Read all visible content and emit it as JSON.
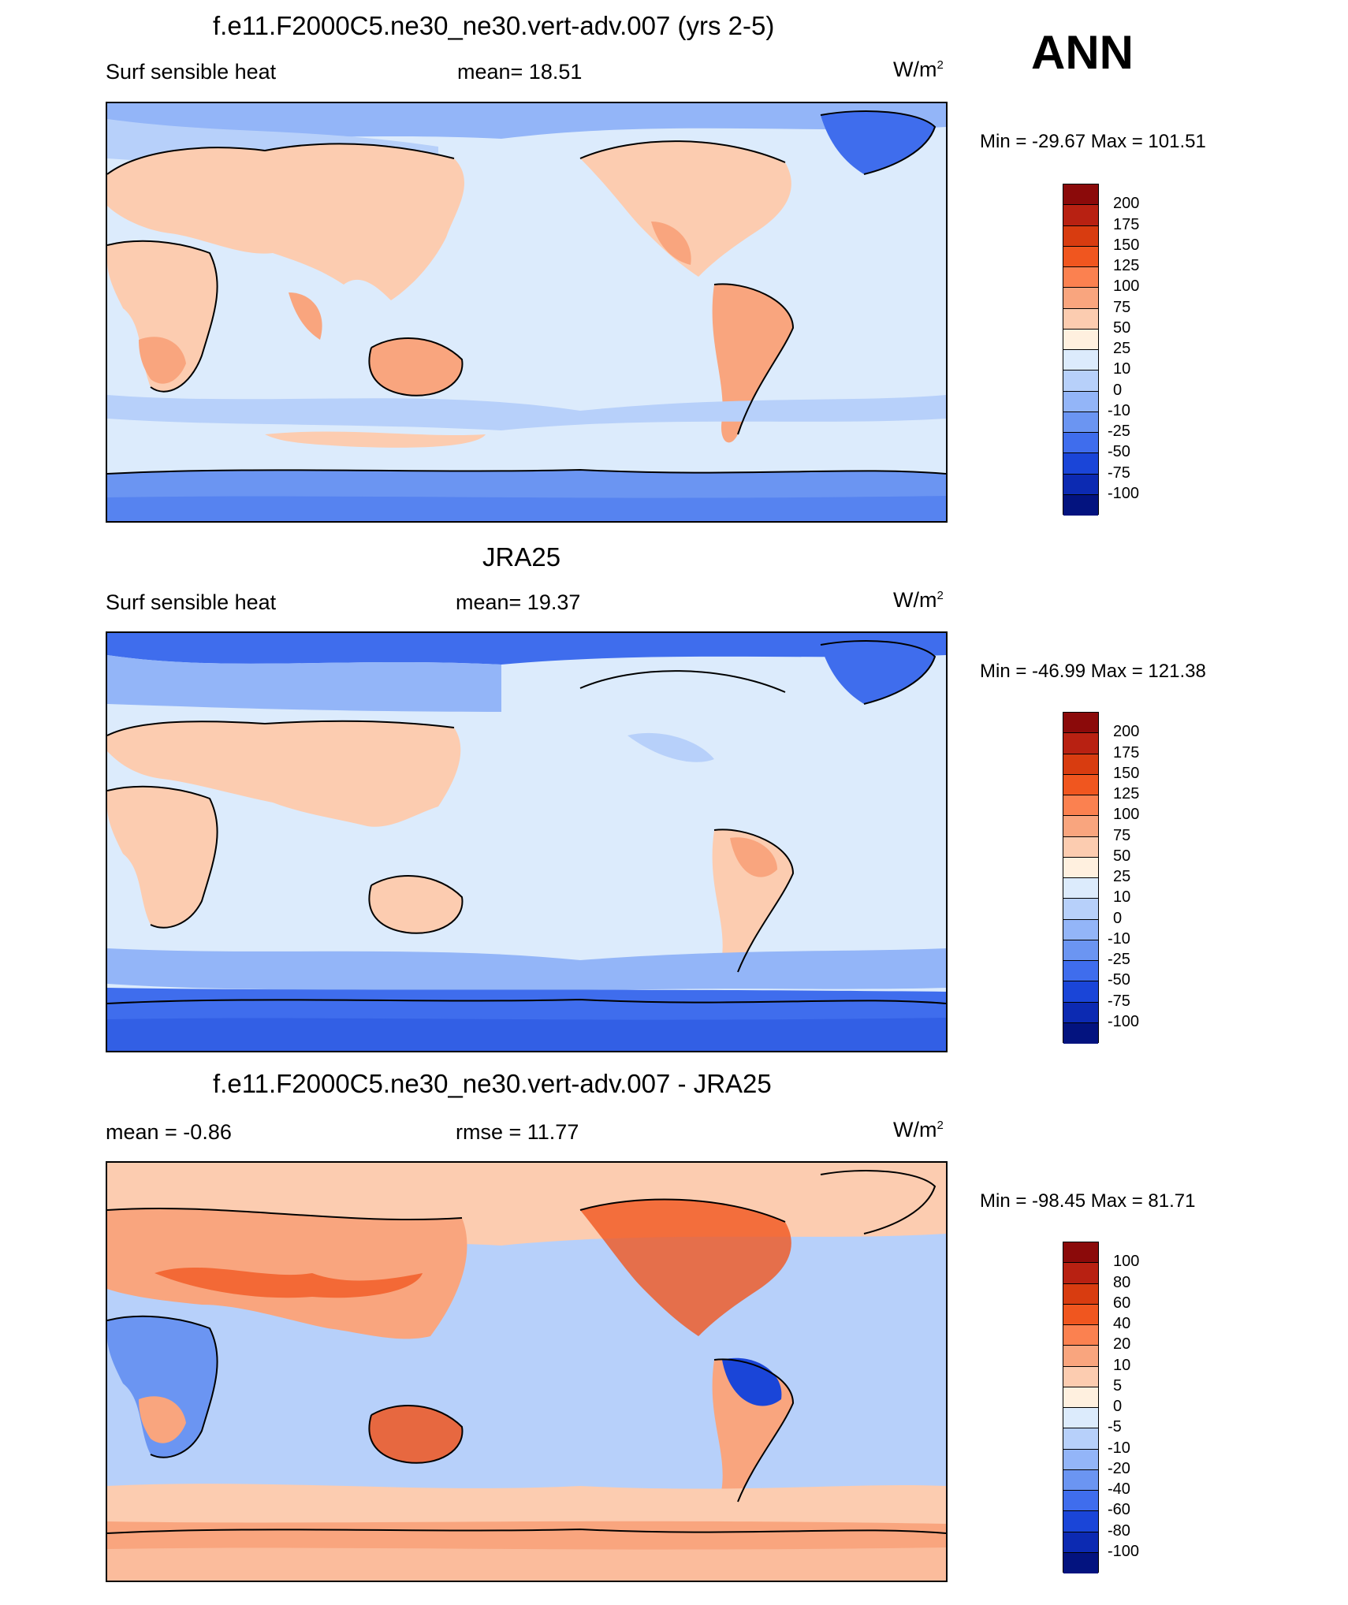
{
  "season": "ANN",
  "units_main": "W/m",
  "units_sup": "2",
  "panels": [
    {
      "title": "f.e11.F2000C5.ne30_ne30.vert-adv.007 (yrs 2-5)",
      "left": "Surf sensible heat",
      "center": "mean=  18.51",
      "minmax": "Min = -29.67 Max = 101.51",
      "levels": [
        "200",
        "175",
        "150",
        "125",
        "100",
        "75",
        "50",
        "25",
        "10",
        "0",
        "-10",
        "-25",
        "-50",
        "-75",
        "-100"
      ]
    },
    {
      "title": "JRA25",
      "left": "Surf sensible heat",
      "center": "mean=  19.37",
      "minmax": "Min = -46.99 Max = 121.38",
      "levels": [
        "200",
        "175",
        "150",
        "125",
        "100",
        "75",
        "50",
        "25",
        "10",
        "0",
        "-10",
        "-25",
        "-50",
        "-75",
        "-100"
      ]
    },
    {
      "title": "f.e11.F2000C5.ne30_ne30.vert-adv.007 - JRA25",
      "left": "mean =  -0.86",
      "center": "rmse =  11.77",
      "minmax": "Min = -98.45 Max =  81.71",
      "levels": [
        "100",
        "80",
        "60",
        "40",
        "20",
        "10",
        "5",
        "0",
        "-5",
        "-10",
        "-20",
        "-40",
        "-60",
        "-80",
        "-100"
      ]
    }
  ],
  "colors": {
    "scale": [
      "#8b0a0a",
      "#b82112",
      "#d83c10",
      "#f0561f",
      "#fb8150",
      "#f9a57e",
      "#fcccb0",
      "#fff0df",
      "#dcebfc",
      "#b7d0fa",
      "#93b5f8",
      "#6b95f2",
      "#3f6ded",
      "#1a45d8",
      "#0c2ab2",
      "#03137f"
    ],
    "land_warm": "#fcccb0",
    "ocean_light": "#dcebfc",
    "ocean_mid": "#b7d0fa",
    "ice_blue": "#6b95f2",
    "ice_deep": "#3f6ded",
    "diff_warm": "#f9a57e",
    "diff_hot": "#f0561f"
  }
}
